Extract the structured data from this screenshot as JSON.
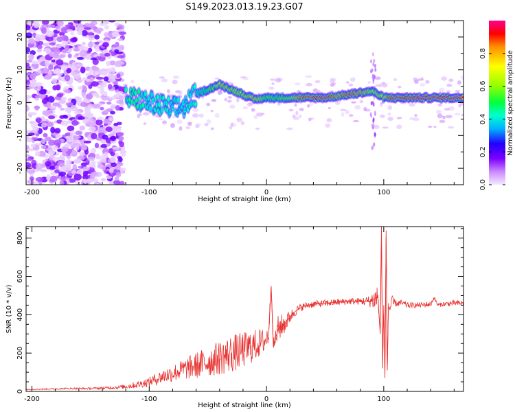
{
  "title": "S149.2023.013.19.23.G07",
  "chart_data": [
    {
      "type": "heatmap",
      "xlabel": "Height of straight line (km)",
      "ylabel": "Frequency (Hz)",
      "xlim": [
        -205,
        168
      ],
      "ylim": [
        -25,
        25
      ],
      "x_ticks": [
        -200,
        -100,
        0,
        100
      ],
      "y_ticks": [
        -20,
        -10,
        0,
        10,
        20
      ],
      "colorbar": {
        "label": "Normalized spectral amplitude",
        "range": [
          0,
          1
        ],
        "ticks": [
          0.0,
          0.2,
          0.4,
          0.6,
          0.8
        ],
        "colors": [
          "#f4eaff",
          "#cc88ff",
          "#7a00ff",
          "#2200ff",
          "#00b0ff",
          "#00ffd0",
          "#00ff40",
          "#90ff00",
          "#ffff00",
          "#ff9000",
          "#ff0000",
          "#ff0090"
        ]
      },
      "ridge": [
        {
          "x": -120,
          "f": 1.5,
          "a": 0.45
        },
        {
          "x": -110,
          "f": 1.0,
          "a": 0.5
        },
        {
          "x": -100,
          "f": 0.0,
          "a": 0.4
        },
        {
          "x": -90,
          "f": -1.0,
          "a": 0.45
        },
        {
          "x": -80,
          "f": -2.0,
          "a": 0.4
        },
        {
          "x": -70,
          "f": -1.0,
          "a": 0.4
        },
        {
          "x": -60,
          "f": 2.5,
          "a": 0.45
        },
        {
          "x": -50,
          "f": 4.0,
          "a": 0.55
        },
        {
          "x": -40,
          "f": 5.5,
          "a": 0.75
        },
        {
          "x": -30,
          "f": 4.0,
          "a": 0.7
        },
        {
          "x": -20,
          "f": 2.5,
          "a": 0.7
        },
        {
          "x": -10,
          "f": 1.0,
          "a": 0.8
        },
        {
          "x": 0,
          "f": 1.5,
          "a": 0.6
        },
        {
          "x": 10,
          "f": 1.5,
          "a": 0.6
        },
        {
          "x": 20,
          "f": 1.5,
          "a": 0.65
        },
        {
          "x": 30,
          "f": 1.5,
          "a": 0.85
        },
        {
          "x": 40,
          "f": 1.5,
          "a": 0.9
        },
        {
          "x": 50,
          "f": 1.5,
          "a": 0.95
        },
        {
          "x": 60,
          "f": 2.0,
          "a": 0.8
        },
        {
          "x": 70,
          "f": 2.5,
          "a": 0.9
        },
        {
          "x": 80,
          "f": 3.0,
          "a": 0.85
        },
        {
          "x": 90,
          "f": 3.5,
          "a": 0.7
        },
        {
          "x": 100,
          "f": 1.5,
          "a": 0.75
        },
        {
          "x": 110,
          "f": 1.5,
          "a": 0.95
        },
        {
          "x": 120,
          "f": 1.5,
          "a": 0.9
        },
        {
          "x": 130,
          "f": 1.5,
          "a": 0.95
        },
        {
          "x": 140,
          "f": 1.5,
          "a": 0.95
        },
        {
          "x": 150,
          "f": 1.5,
          "a": 0.95
        },
        {
          "x": 165,
          "f": 1.5,
          "a": 0.95
        }
      ]
    },
    {
      "type": "line",
      "xlabel": "Height of straight line (km)",
      "ylabel": "SNR (10 * v/v)",
      "xlim": [
        -205,
        168
      ],
      "ylim": [
        0,
        860
      ],
      "x_ticks": [
        -200,
        -100,
        0,
        100
      ],
      "y_ticks": [
        0,
        200,
        400,
        600,
        800
      ],
      "color": "#e8312f",
      "series": [
        {
          "x": [
            -205,
            -190,
            -170,
            -150,
            -130,
            -120,
            -110,
            -100,
            -90,
            -80,
            -70,
            -60,
            -50,
            -40,
            -30,
            -20,
            -10,
            0,
            2,
            4,
            6,
            10,
            15,
            20,
            25,
            30,
            35,
            40,
            50,
            60,
            70,
            80,
            88,
            92,
            95,
            97,
            98,
            99,
            100,
            101,
            102,
            103,
            104,
            105,
            107,
            110,
            115,
            120,
            130,
            140,
            143,
            146,
            150,
            160,
            168
          ],
          "y": [
            10,
            12,
            15,
            15,
            20,
            25,
            35,
            50,
            75,
            95,
            115,
            135,
            155,
            175,
            195,
            215,
            240,
            270,
            320,
            550,
            230,
            330,
            350,
            390,
            420,
            440,
            450,
            455,
            460,
            465,
            470,
            470,
            470,
            480,
            500,
            300,
            860,
            120,
            450,
            70,
            840,
            110,
            460,
            430,
            460,
            460,
            460,
            450,
            450,
            455,
            490,
            450,
            455,
            460,
            460
          ],
          "noise": [
            3,
            3,
            4,
            5,
            8,
            12,
            18,
            25,
            35,
            45,
            55,
            70,
            80,
            90,
            100,
            95,
            85,
            60,
            80,
            0,
            40,
            70,
            55,
            35,
            25,
            20,
            18,
            18,
            18,
            18,
            18,
            18,
            30,
            60,
            80,
            0,
            0,
            0,
            0,
            0,
            0,
            0,
            60,
            60,
            40,
            18,
            18,
            15,
            15,
            15,
            10,
            10,
            12,
            15,
            15
          ]
        }
      ]
    }
  ]
}
